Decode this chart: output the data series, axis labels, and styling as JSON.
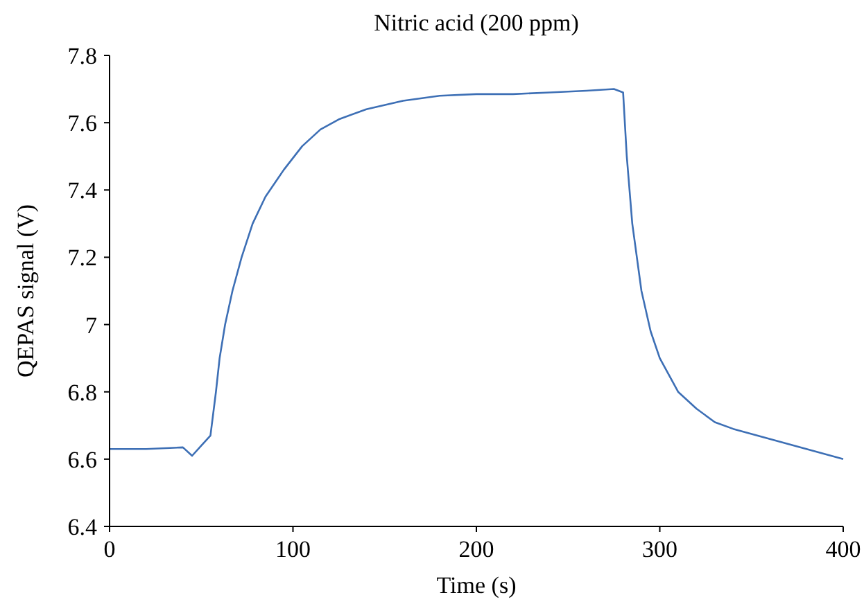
{
  "chart_data": {
    "type": "line",
    "title": "Nitric acid (200 ppm)",
    "xlabel": "Time (s)",
    "ylabel": "QEPAS signal (V)",
    "x": [
      0,
      20,
      40,
      45,
      50,
      55,
      58,
      60,
      63,
      67,
      72,
      78,
      85,
      95,
      105,
      115,
      125,
      140,
      160,
      180,
      200,
      220,
      240,
      260,
      275,
      280,
      282,
      285,
      290,
      295,
      300,
      310,
      320,
      330,
      340,
      360,
      380,
      400
    ],
    "series": [
      {
        "color": "#3d6fb5",
        "values": [
          6.63,
          6.63,
          6.635,
          6.61,
          6.64,
          6.67,
          6.8,
          6.9,
          7.0,
          7.1,
          7.2,
          7.3,
          7.38,
          7.46,
          7.53,
          7.58,
          7.61,
          7.64,
          7.665,
          7.68,
          7.685,
          7.685,
          7.69,
          7.695,
          7.7,
          7.69,
          7.5,
          7.3,
          7.1,
          6.98,
          6.9,
          6.8,
          6.75,
          6.71,
          6.69,
          6.66,
          6.63,
          6.6
        ]
      }
    ],
    "xlim": [
      0,
      400
    ],
    "xticks": [
      0,
      100,
      200,
      300,
      400
    ],
    "ylim": [
      6.4,
      7.8
    ],
    "yticks": [
      6.4,
      6.6,
      6.8,
      7,
      7.2,
      7.4,
      7.6,
      7.8
    ],
    "grid": false,
    "marker": "none",
    "line_style": "solid"
  }
}
